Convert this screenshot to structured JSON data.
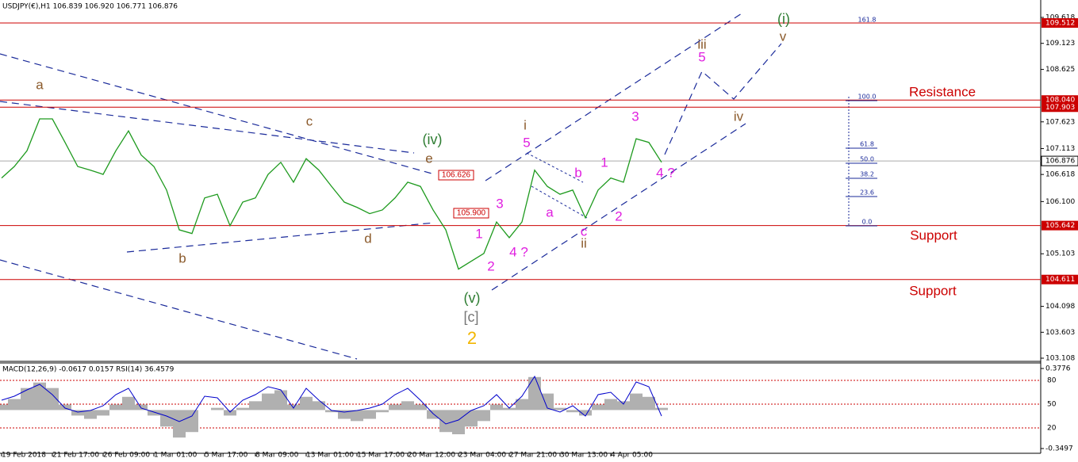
{
  "chart_data": {
    "type": "line",
    "title": "USDJPY(€),H1  106.839 106.920 106.771 106.876",
    "categories": [
      "19 Feb 2018",
      null,
      null,
      null,
      "21 Feb 17:00",
      null,
      null,
      null,
      "26 Feb 09:00",
      null,
      null,
      null,
      "1 Mar 01:00",
      null,
      null,
      null,
      "5 Mar 17:00",
      null,
      null,
      null,
      "8 Mar 09:00",
      null,
      null,
      null,
      "13 Mar 01:00",
      null,
      null,
      null,
      "15 Mar 17:00",
      null,
      null,
      null,
      "20 Mar 12:00",
      null,
      null,
      null,
      "23 Mar 04:00",
      null,
      null,
      null,
      "27 Mar 21:00",
      null,
      null,
      null,
      "30 Mar 13:00",
      null,
      null,
      null,
      "4 Apr 05:00",
      null,
      null,
      null,
      null
    ],
    "series": [
      {
        "name": "USDJPY",
        "color": "#1e9a1e",
        "values": [
          106.55,
          106.77,
          107.07,
          107.68,
          107.68,
          107.23,
          106.77,
          106.7,
          106.62,
          107.07,
          107.45,
          106.99,
          106.77,
          106.32,
          105.56,
          105.49,
          106.17,
          106.24,
          105.64,
          106.09,
          106.17,
          106.62,
          106.85,
          106.47,
          106.92,
          106.7,
          106.39,
          106.09,
          105.99,
          105.87,
          105.94,
          106.17,
          106.47,
          106.39,
          105.94,
          105.56,
          104.81,
          104.96,
          105.11,
          105.71,
          105.41,
          105.71,
          106.7,
          106.39,
          106.24,
          106.32,
          105.79,
          106.32,
          106.55,
          106.47,
          107.3,
          107.23,
          106.85
        ]
      }
    ],
    "ylim": [
      103.108,
      109.618
    ],
    "yticks": [
      109.618,
      109.123,
      108.625,
      107.623,
      107.113,
      106.618,
      {
        "value": 106.1,
        "label": "106.100"
      },
      105.103,
      104.098,
      103.603,
      103.108
    ],
    "levels": [
      {
        "value": 109.512,
        "label": "109.512",
        "color": "#cc0000"
      },
      {
        "value": 108.04,
        "label": "108.040",
        "color": "#cc0000"
      },
      {
        "value": 107.903,
        "label": "107.903",
        "color": "#cc0000"
      },
      {
        "value": 106.876,
        "label": "106.876",
        "color": "#aaaaaa"
      },
      {
        "value": 105.642,
        "label": "105.642",
        "color": "#cc0000"
      },
      {
        "value": 104.611,
        "label": "104.611",
        "color": "#cc0000"
      }
    ],
    "annotations": [
      "a",
      "b",
      "c",
      "d",
      "e",
      "(iv)",
      "106.626",
      "105.900",
      "1",
      "2",
      "3",
      "4 ?",
      "(v)",
      "[c]",
      "2",
      "i",
      "5",
      "a",
      "b",
      "c",
      "ii",
      "1",
      "2",
      "3",
      "4 ?",
      "iii",
      "5",
      "iv",
      "(i)",
      "v",
      "Resistance",
      "Support",
      "Support"
    ],
    "fib_labels": [
      "161.8",
      "100.0",
      "61.8",
      "50.0",
      "38.2",
      "23.6",
      "0.0"
    ],
    "indicator": {
      "title": "MACD(12,26,9) -0.0617 0.0157 RSI(14) 36.4579",
      "macd_color": "#b0b0b0",
      "rsi_color": "#0000cc",
      "macd_lim": [
        -0.3497,
        0.3776
      ],
      "macd_ticks": [
        0.3776,
        -0.3497
      ],
      "rsi_lim": [
        0,
        100
      ],
      "rsi_ticks": [
        80,
        50,
        20
      ],
      "macd": [
        0.05,
        0.1,
        0.2,
        0.25,
        0.2,
        0.05,
        -0.05,
        -0.08,
        -0.05,
        0.05,
        0.12,
        0.05,
        -0.05,
        -0.15,
        -0.25,
        -0.2,
        0,
        0.02,
        -0.05,
        0.02,
        0.08,
        0.15,
        0.18,
        0.05,
        0.12,
        0.08,
        -0.02,
        -0.08,
        -0.1,
        -0.08,
        -0.02,
        0.05,
        0.08,
        0.05,
        -0.08,
        -0.2,
        -0.22,
        -0.15,
        -0.1,
        0.05,
        0.02,
        0.1,
        0.3,
        0.15,
        0.02,
        -0.02,
        -0.05,
        0.05,
        0.1,
        0.08,
        0.15,
        0.12,
        0.02
      ],
      "rsi": [
        55,
        60,
        68,
        75,
        62,
        45,
        40,
        42,
        48,
        62,
        70,
        45,
        40,
        35,
        28,
        35,
        60,
        58,
        40,
        55,
        62,
        72,
        68,
        45,
        70,
        55,
        42,
        40,
        42,
        45,
        50,
        62,
        70,
        55,
        38,
        25,
        30,
        42,
        48,
        62,
        45,
        60,
        85,
        45,
        40,
        48,
        35,
        62,
        65,
        50,
        78,
        72,
        35
      ]
    }
  }
}
